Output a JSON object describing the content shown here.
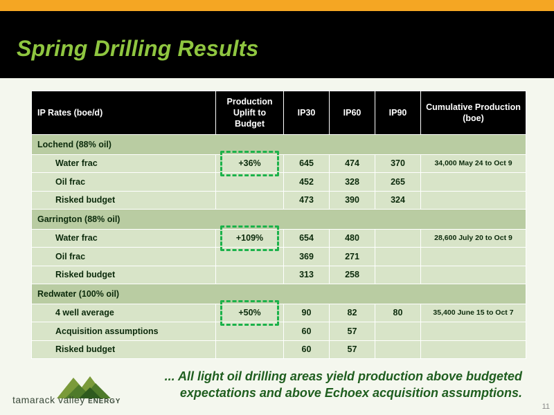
{
  "title": "Spring Drilling Results",
  "headers": {
    "ip_rates": "IP Rates  (boe/d)",
    "uplift": "Production Uplift to Budget",
    "ip30": "IP30",
    "ip60": "IP60",
    "ip90": "IP90",
    "cumulative": "Cumulative Production (boe)"
  },
  "groups": [
    {
      "name": "Lochend  (88% oil)",
      "rows": [
        {
          "label": "Water frac",
          "uplift": "+36%",
          "ip30": "645",
          "ip60": "474",
          "ip90": "370",
          "cum": "34,000 May 24 to Oct 9"
        },
        {
          "label": "Oil frac",
          "uplift": "",
          "ip30": "452",
          "ip60": "328",
          "ip90": "265",
          "cum": ""
        },
        {
          "label": "Risked budget",
          "uplift": "",
          "ip30": "473",
          "ip60": "390",
          "ip90": "324",
          "cum": ""
        }
      ]
    },
    {
      "name": "Garrington (88% oil)",
      "rows": [
        {
          "label": "Water frac",
          "uplift": "+109%",
          "ip30": "654",
          "ip60": "480",
          "ip90": "",
          "cum": "28,600 July 20 to Oct 9"
        },
        {
          "label": "Oil frac",
          "uplift": "",
          "ip30": "369",
          "ip60": "271",
          "ip90": "",
          "cum": ""
        },
        {
          "label": "Risked budget",
          "uplift": "",
          "ip30": "313",
          "ip60": "258",
          "ip90": "",
          "cum": ""
        }
      ]
    },
    {
      "name": "Redwater  (100% oil)",
      "rows": [
        {
          "label": "4 well average",
          "uplift": "+50%",
          "ip30": "90",
          "ip60": "82",
          "ip90": "80",
          "cum": "35,400 June 15 to Oct 7"
        },
        {
          "label": "Acquisition assumptions",
          "uplift": "",
          "ip30": "60",
          "ip60": "57",
          "ip90": "",
          "cum": ""
        },
        {
          "label": "Risked budget",
          "uplift": "",
          "ip30": "60",
          "ip60": "57",
          "ip90": "",
          "cum": ""
        }
      ]
    }
  ],
  "footer_line1": "... All light oil drilling areas yield production above budgeted",
  "footer_line2": "expectations and above Echoex acquisition assumptions.",
  "logo_text": "tamarack valley",
  "logo_text_bold": "ENERGY",
  "page_number": "11",
  "colors": {
    "accent_orange": "#f5a623",
    "title_green": "#8fc640",
    "highlight_dash": "#1bb24a",
    "row_bg": "#d8e4c8",
    "group_bg": "#b9cca2"
  }
}
